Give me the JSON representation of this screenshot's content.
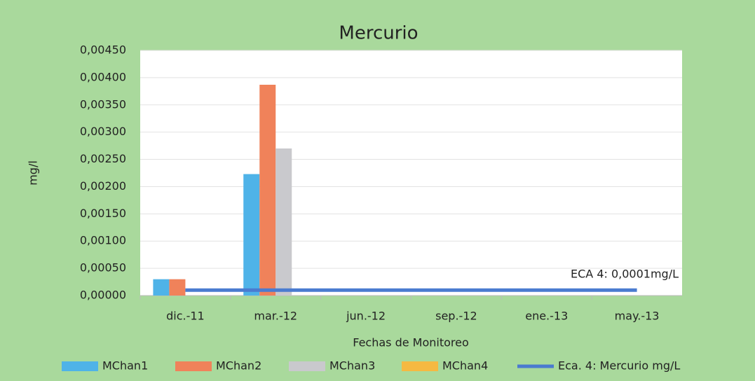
{
  "chart_data": {
    "type": "bar",
    "title": "Mercurio",
    "y_label": "mg/l",
    "x_label": "Fechas de Monitoreo",
    "categories": [
      "dic.-11",
      "mar.-12",
      "jun.-12",
      "sep.-12",
      "ene.-13",
      "may.-13"
    ],
    "series": [
      {
        "name": "MChan1",
        "color": "#4fb3e8",
        "values": [
          0.0003,
          0.00223,
          null,
          null,
          null,
          null
        ]
      },
      {
        "name": "MChan2",
        "color": "#f0825a",
        "values": [
          0.0003,
          0.00387,
          null,
          null,
          null,
          null
        ]
      },
      {
        "name": "MChan3",
        "color": "#c9c9cd",
        "values": [
          null,
          0.0027,
          null,
          null,
          null,
          null
        ]
      },
      {
        "name": "MChan4",
        "color": "#f5b942",
        "values": [
          null,
          null,
          null,
          null,
          null,
          null
        ]
      },
      {
        "name": "Eca. 4: Mercurio mg/L",
        "color": "#4a7bd0",
        "type": "line",
        "values": [
          0.0001,
          0.0001,
          0.0001,
          0.0001,
          0.0001,
          0.0001
        ]
      }
    ],
    "annotation": "ECA 4: 0,0001mg/L",
    "ylim": [
      0,
      0.0045
    ],
    "yticks": [
      {
        "value": 0,
        "label": "0,00000"
      },
      {
        "value": 0.0005,
        "label": "0,00050"
      },
      {
        "value": 0.001,
        "label": "0,00100"
      },
      {
        "value": 0.0015,
        "label": "0,00150"
      },
      {
        "value": 0.002,
        "label": "0,00200"
      },
      {
        "value": 0.0025,
        "label": "0,00250"
      },
      {
        "value": 0.003,
        "label": "0,00300"
      },
      {
        "value": 0.0035,
        "label": "0,00350"
      },
      {
        "value": 0.004,
        "label": "0,00400"
      },
      {
        "value": 0.0045,
        "label": "0,00450"
      }
    ],
    "grid": true,
    "legend": "bottom"
  }
}
